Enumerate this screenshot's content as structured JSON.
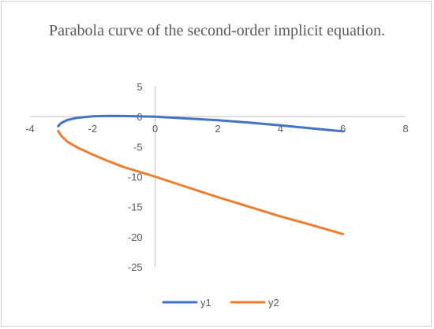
{
  "chart_data": {
    "type": "scatter",
    "title": "Parabola curve of the second-order implicit equation.",
    "xlim": [
      -4,
      8
    ],
    "ylim": [
      -25,
      5
    ],
    "x_ticks": [
      -4,
      -2,
      0,
      2,
      4,
      6,
      8
    ],
    "y_ticks": [
      5,
      0,
      -5,
      -10,
      -15,
      -20,
      -25
    ],
    "grid": false,
    "legend_position": "bottom",
    "series": [
      {
        "name": "y1",
        "color": "#4472c4",
        "x": [
          -3.1,
          -3.0,
          -2.8,
          -2.5,
          -2.0,
          -1.5,
          -1.0,
          0,
          1,
          2,
          3,
          4,
          5,
          6
        ],
        "y": [
          -1.6,
          -1.05,
          -0.55,
          -0.2,
          0.05,
          0.12,
          0.1,
          0.0,
          -0.3,
          -0.6,
          -1.0,
          -1.45,
          -1.95,
          -2.45
        ]
      },
      {
        "name": "y2",
        "color": "#ed7d31",
        "x": [
          -3.1,
          -3.0,
          -2.8,
          -2.5,
          -2.0,
          -1.5,
          -1.0,
          0,
          1,
          2,
          3,
          4,
          5,
          6
        ],
        "y": [
          -2.4,
          -3.2,
          -4.2,
          -5.1,
          -6.3,
          -7.4,
          -8.4,
          -10.0,
          -11.7,
          -13.4,
          -15.0,
          -16.6,
          -18.05,
          -19.55
        ]
      }
    ]
  }
}
